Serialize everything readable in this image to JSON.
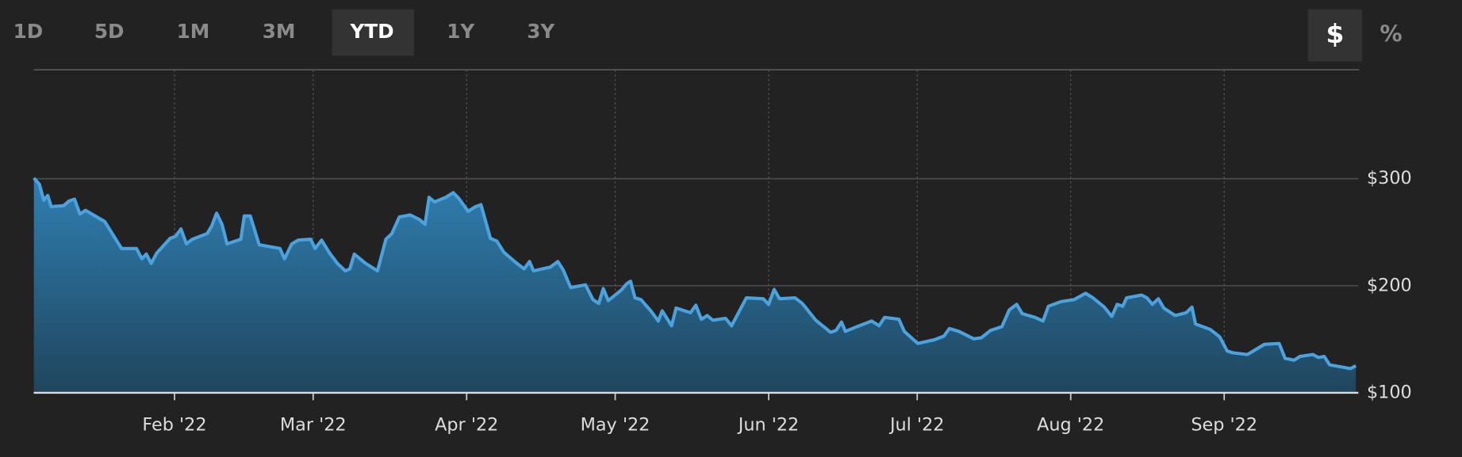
{
  "range_buttons": [
    "1D",
    "5D",
    "1M",
    "3M",
    "YTD",
    "1Y",
    "3Y"
  ],
  "unit_buttons": [
    "$",
    "%"
  ],
  "chart_data": {
    "type": "line",
    "x": [
      3.6,
      4.7,
      5.6,
      6.4,
      7.1,
      9.6,
      10.7,
      11.8,
      12.9,
      14.0,
      17.9,
      21.3,
      24.3,
      25.4,
      26.3,
      27.3,
      28.4,
      31.1,
      32.2,
      33.3,
      34.4,
      35.6,
      38.6,
      39.5,
      40.5,
      41.6,
      42.6,
      45.4,
      46.1,
      47.3,
      49.1,
      53.3,
      54.2,
      55.7,
      57.0,
      59.5,
      60.4,
      61.7,
      63.2,
      64.9,
      66.5,
      67.4,
      68.3,
      70.6,
      73.0,
      74.7,
      75.9,
      77.4,
      79.6,
      81.5,
      82.6,
      83.4,
      84.5,
      86.8,
      88.3,
      89.4,
      91.3,
      92.8,
      93.9,
      95.8,
      97.1,
      98.5,
      100.7,
      102.6,
      103.7,
      104.5,
      107.9,
      109.4,
      110.5,
      112.0,
      115.0,
      116.5,
      117.7,
      118.6,
      119.6,
      122.2,
      123.3,
      124.1,
      125.0,
      126.2,
      128.2,
      129.7,
      130.5,
      132.4,
      133.3,
      136.2,
      137.3,
      138.4,
      139.6,
      140.7,
      143.3,
      144.5,
      147.5,
      150.9,
      152.0,
      153.1,
      154.2,
      157.3,
      158.8,
      161.5,
      164.5,
      165.6,
      166.7,
      167.5,
      169.8,
      172.8,
      174.3,
      175.4,
      178.3,
      179.4,
      182.1,
      185.5,
      187.4,
      188.5,
      190.4,
      193.4,
      194.9,
      196.8,
      199.1,
      200.6,
      202.1,
      203.2,
      205.8,
      207.4,
      208.5,
      211.1,
      213.7,
      216.0,
      217.5,
      219.8,
      221.3,
      222.4,
      223.5,
      224.3,
      227.3,
      228.4,
      229.5,
      230.7,
      231.8,
      234.1,
      236.3,
      237.5,
      238.2,
      241.2,
      243.1,
      244.6,
      245.7,
      248.7,
      252.1,
      255.1,
      256.3,
      258.1,
      259.3,
      261.9,
      263.0,
      264.2,
      265.3,
      269.5,
      270.6
    ],
    "series": [
      {
        "color": "#4aa3df",
        "values": [
          300.7,
          294.8,
          280,
          284.3,
          273.9,
          274.8,
          279.1,
          280.9,
          267,
          270.4,
          260,
          234.8,
          234.8,
          225.2,
          229.6,
          220.9,
          230.4,
          244.3,
          246.1,
          253,
          239.1,
          243.5,
          248.7,
          255.7,
          267.8,
          257.4,
          239.1,
          243.5,
          265.2,
          265.2,
          238.3,
          234.8,
          225.2,
          239.1,
          242.6,
          243.5,
          234.8,
          242.6,
          231.3,
          220.9,
          213.9,
          215.7,
          229.6,
          220.9,
          213.9,
          243.5,
          248.7,
          264.3,
          266.1,
          261.7,
          257.4,
          282.6,
          278.3,
          282.6,
          287,
          281.7,
          269.6,
          273.9,
          275.7,
          244.3,
          241.7,
          231.3,
          222.6,
          215.7,
          222.6,
          213.9,
          217.4,
          222.6,
          214.8,
          198.3,
          200.9,
          187,
          183.5,
          197.4,
          186.1,
          195.7,
          201.7,
          204.3,
          188.7,
          187,
          176.5,
          167,
          176.5,
          162.6,
          179.1,
          174.8,
          181.7,
          168.7,
          172.2,
          167.8,
          169.6,
          162.6,
          188.7,
          187.8,
          182.6,
          196.5,
          187.8,
          188.7,
          183.5,
          167.8,
          156.5,
          158.3,
          166.1,
          157.4,
          161.7,
          167,
          162.6,
          170.4,
          168.7,
          157.4,
          146.1,
          149.6,
          153,
          160,
          157.4,
          150.4,
          151.3,
          158.3,
          161.7,
          177.4,
          182.6,
          173.9,
          170.4,
          167,
          180.9,
          185.2,
          187,
          193,
          188.7,
          180,
          171.3,
          182.6,
          180.9,
          188.7,
          191.3,
          188.7,
          182.6,
          187.8,
          179.1,
          172.2,
          174.8,
          180,
          164.3,
          159.1,
          152.2,
          139.1,
          137.4,
          135.7,
          145.2,
          146.1,
          132.2,
          130.4,
          133.9,
          135.7,
          133,
          133.9,
          126.1,
          122.6,
          125.2
        ]
      }
    ],
    "xlim": [
      3.56,
      271.1
    ],
    "ylim": [
      100,
      400
    ],
    "xticks": [
      {
        "value": 32,
        "label": "Feb '22"
      },
      {
        "value": 60,
        "label": "Mar '22"
      },
      {
        "value": 91,
        "label": "Apr '22"
      },
      {
        "value": 121,
        "label": "May '22"
      },
      {
        "value": 152,
        "label": "Jun '22"
      },
      {
        "value": 182,
        "label": "Jul '22"
      },
      {
        "value": 213,
        "label": "Aug '22"
      },
      {
        "value": 244,
        "label": "Sep '22"
      }
    ],
    "yticks": [
      {
        "value": 100,
        "label": "$100"
      },
      {
        "value": 200,
        "label": "$200"
      },
      {
        "value": 300,
        "label": "$300"
      }
    ],
    "grid": true
  }
}
